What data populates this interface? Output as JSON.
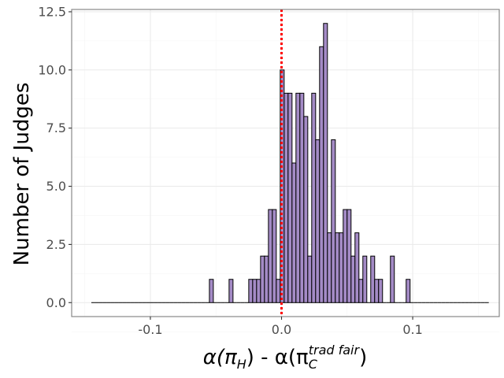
{
  "chart_data": {
    "type": "bar",
    "title": "",
    "xlabel": {
      "base1": "α(π",
      "sub1": "H",
      "mid": ") - α(π",
      "sup": "trad fair",
      "sub2": "C",
      "end": ")"
    },
    "ylabel": "Number of Judges",
    "xlim": [
      -0.16,
      0.166
    ],
    "ylim": [
      -0.6,
      12.6
    ],
    "xticks": [
      {
        "value": -0.1,
        "label": "-0.1"
      },
      {
        "value": 0.0,
        "label": "0.0"
      },
      {
        "value": 0.1,
        "label": "0.1"
      }
    ],
    "yticks": [
      {
        "value": 0,
        "label": "0.0"
      },
      {
        "value": 2.5,
        "label": "2.5"
      },
      {
        "value": 5,
        "label": "5.0"
      },
      {
        "value": 7.5,
        "label": "7.5"
      },
      {
        "value": 10,
        "label": "10.0"
      },
      {
        "value": 12.5,
        "label": "12.5"
      }
    ],
    "grid": true,
    "bin_start": -0.145,
    "bin_width": 0.003,
    "counts": [
      0,
      0,
      0,
      0,
      0,
      0,
      0,
      0,
      0,
      0,
      0,
      0,
      0,
      0,
      0,
      0,
      0,
      0,
      0,
      0,
      0,
      0,
      0,
      0,
      0,
      0,
      0,
      0,
      0,
      0,
      1,
      0,
      0,
      0,
      0,
      1,
      0,
      0,
      0,
      0,
      1,
      1,
      1,
      2,
      2,
      4,
      4,
      1,
      10,
      9,
      9,
      6,
      9,
      9,
      8,
      2,
      9,
      7,
      11,
      12,
      3,
      7,
      3,
      3,
      4,
      4,
      2,
      3,
      1,
      2,
      0,
      2,
      1,
      1,
      0,
      0,
      2,
      0,
      0,
      0,
      1,
      0,
      0,
      0,
      0,
      0,
      0,
      0,
      0,
      0,
      0,
      0,
      0,
      0,
      0,
      0,
      0,
      0,
      0,
      0,
      0
    ],
    "vline": {
      "x": 0.0,
      "color": "#ff0000",
      "style": "dotted"
    },
    "colors": {
      "bar_fill": "#a48bc6",
      "bar_stroke": "#000000",
      "grid_major": "#ebebeb",
      "grid_minor": "#f5f5f5",
      "panel_border": "#7f7f7f"
    }
  }
}
